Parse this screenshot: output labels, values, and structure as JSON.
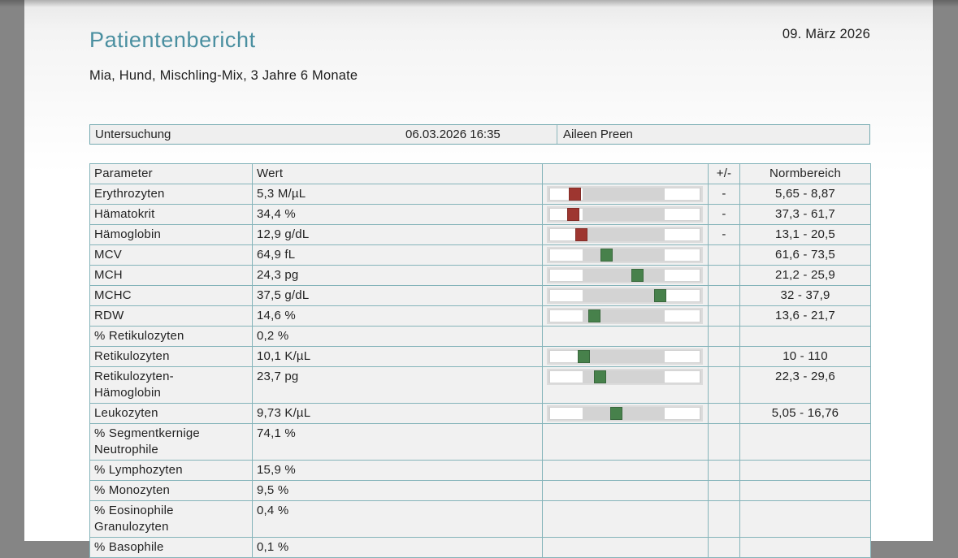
{
  "report": {
    "title": "Patientenbericht",
    "date": "09. März 2026",
    "patient_summary": "Mia, Hund, Mischling-Mix, 3 Jahre 6 Monate"
  },
  "exam": {
    "label": "Untersuchung",
    "datetime": "06.03.2026 16:35",
    "examiner": "Aileen Preen"
  },
  "colors": {
    "accent_title": "#4a8fa0",
    "table_border": "#85b4ba",
    "row_background": "#f1f1f1",
    "bar_track": "#d3d3d3",
    "marker_low": "#9e3630",
    "marker_normal": "#47814b",
    "page_margin": "#858585"
  },
  "table": {
    "headers": [
      "Parameter",
      "Wert",
      "",
      "+/-",
      "Normbereich"
    ],
    "rows": [
      {
        "parameter": "Erythrozyten",
        "value": "5,3 M/µL",
        "flag": "-",
        "range": "5,65 - 8,87",
        "marker": "low",
        "marker_pos": 0.172
      },
      {
        "parameter": "Hämatokrit",
        "value": "34,4 %",
        "flag": "-",
        "range": "37,3 - 61,7",
        "marker": "low",
        "marker_pos": 0.161
      },
      {
        "parameter": "Hämoglobin",
        "value": "12,9 g/dL",
        "flag": "-",
        "range": "13,1 - 20,5",
        "marker": "low",
        "marker_pos": 0.214
      },
      {
        "parameter": "MCV",
        "value": "64,9 fL",
        "flag": "",
        "range": "61,6 - 73,5",
        "marker": "normal",
        "marker_pos": 0.38
      },
      {
        "parameter": "MCH",
        "value": "24,3 pg",
        "flag": "",
        "range": "21,2 - 25,9",
        "marker": "normal",
        "marker_pos": 0.578
      },
      {
        "parameter": "MCHC",
        "value": "37,5 g/dL",
        "flag": "",
        "range": "32 - 37,9",
        "marker": "normal",
        "marker_pos": 0.729
      },
      {
        "parameter": "RDW",
        "value": "14,6 %",
        "flag": "",
        "range": "13,6 - 21,7",
        "marker": "normal",
        "marker_pos": 0.297
      },
      {
        "parameter": "% Retikulozyten",
        "value": "0,2 %",
        "flag": "",
        "range": "",
        "marker": null,
        "marker_pos": null
      },
      {
        "parameter": "Retikulozyten",
        "value": "10,1 K/µL",
        "flag": "",
        "range": "10 - 110",
        "marker": "normal",
        "marker_pos": 0.229
      },
      {
        "parameter": "Retikulozyten-Hämoglobin",
        "value": "23,7 pg",
        "flag": "",
        "range": "22,3 - 29,6",
        "marker": "normal",
        "marker_pos": 0.333
      },
      {
        "parameter": "Leukozyten",
        "value": "9,73 K/µL",
        "flag": "",
        "range": "5,05 - 16,76",
        "marker": "normal",
        "marker_pos": 0.443
      },
      {
        "parameter": "% Segmentkernige Neutrophile",
        "value": "74,1 %",
        "flag": "",
        "range": "",
        "marker": null,
        "marker_pos": null
      },
      {
        "parameter": "% Lymphozyten",
        "value": "15,9 %",
        "flag": "",
        "range": "",
        "marker": null,
        "marker_pos": null
      },
      {
        "parameter": "% Monozyten",
        "value": "9,5 %",
        "flag": "",
        "range": "",
        "marker": null,
        "marker_pos": null
      },
      {
        "parameter": "% Eosinophile Granulozyten",
        "value": "0,4 %",
        "flag": "",
        "range": "",
        "marker": null,
        "marker_pos": null
      },
      {
        "parameter": "% Basophile",
        "value": "0,1 %",
        "flag": "",
        "range": "",
        "marker": null,
        "marker_pos": null
      }
    ]
  }
}
